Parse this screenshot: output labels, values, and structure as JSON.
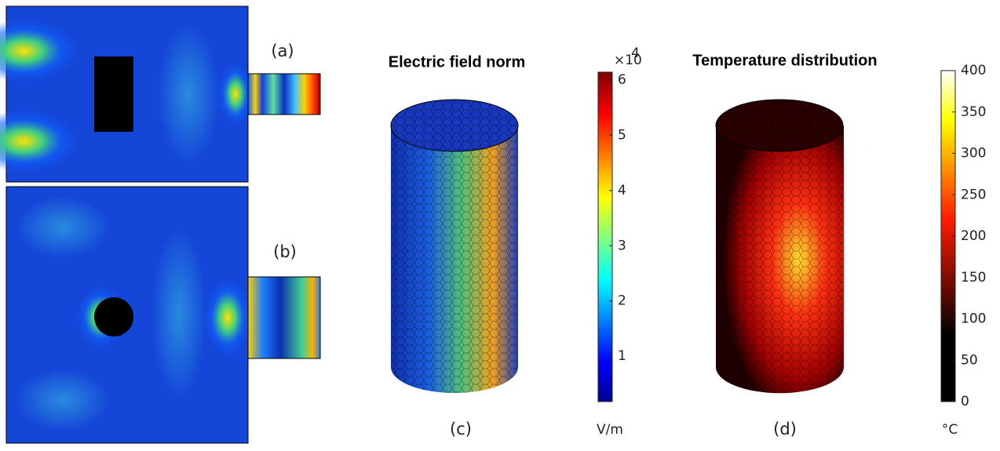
{
  "panel_labels": [
    "(a)",
    "(b)",
    "(c)",
    "(d)"
  ],
  "titles": [
    "Electric field norm",
    "Temperature distribution"
  ],
  "colorbars": [
    {
      "lim": [
        0.18,
        6.14
      ],
      "ticks": [
        1,
        2,
        3,
        4,
        5,
        6
      ],
      "scale_label": "×10",
      "scale_exponent": "4",
      "unit": "V/m",
      "colormap": "jet"
    },
    {
      "lim": [
        0,
        400
      ],
      "ticks": [
        0,
        50,
        100,
        150,
        200,
        250,
        300,
        350,
        400
      ],
      "unit": "°C",
      "colormap": "hot"
    }
  ]
}
